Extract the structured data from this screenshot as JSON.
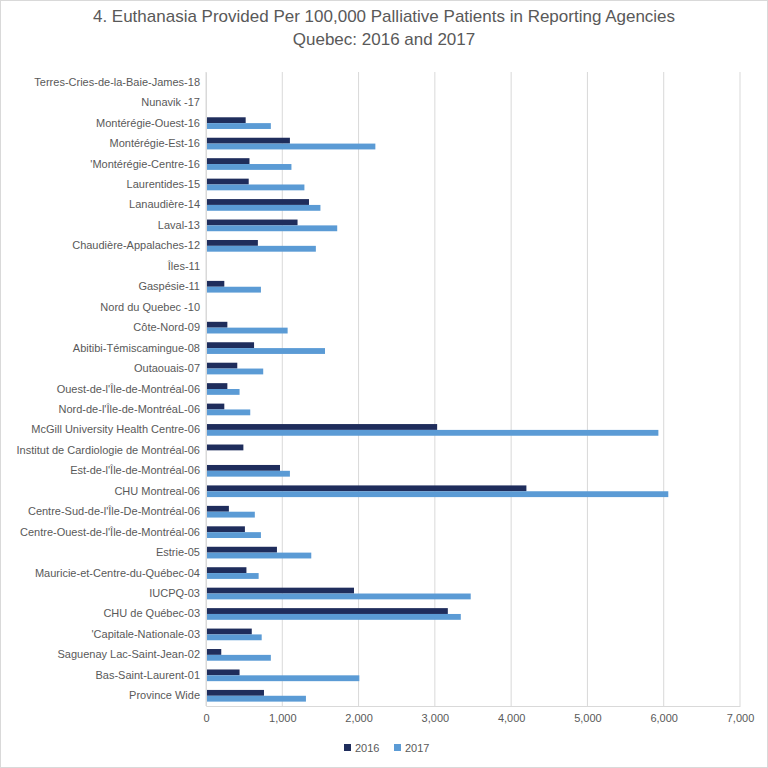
{
  "chart_data": {
    "type": "bar",
    "orientation": "horizontal",
    "title": "4. Euthanasia Provided Per 100,000 Palliative Patients in Reporting Agencies",
    "subtitle": "Quebec: 2016 and 2017",
    "categories": [
      "Terres-Cries-de-la-Baie-James-18",
      "Nunavik -17",
      "Montérégie-Ouest-16",
      "Montérégie-Est-16",
      "'Montérégie-Centre-16",
      "Laurentides-15",
      "Lanaudière-14",
      "Laval-13",
      "Chaudière-Appalaches-12",
      "Îles-11",
      "Gaspésie-11",
      "Nord du Quebec -10",
      "Côte-Nord-09",
      "Abitibi-Témiscamingue-08",
      "Outaouais-07",
      "Ouest-de-l'Île-de-Montréal-06",
      "Nord-de-l'Île-de-MontréaL-06",
      "McGill University Health Centre-06",
      "Institut de Cardiologie de Montréal-06",
      "Est-de-l'Île-de-Montréal-06",
      "CHU Montreal-06",
      "Centre-Sud-de-l'Île-De-Montréal-06",
      "Centre-Ouest-de-l'Île-de-Montréal-06",
      "Estrie-05",
      "Mauricie-et-Centre-du-Québec-04",
      "IUCPQ-03",
      "CHU de Québec-03",
      "'Capitale-Nationale-03",
      "Saguenay Lac-Saint-Jean-02",
      "Bas-Saint-Laurent-01",
      "Province Wide"
    ],
    "series": [
      {
        "name": "2016",
        "color": "#1f2d5c",
        "values": [
          0,
          0,
          520,
          1100,
          570,
          560,
          1350,
          1200,
          680,
          0,
          240,
          0,
          280,
          630,
          410,
          280,
          240,
          3030,
          490,
          970,
          4200,
          300,
          510,
          930,
          530,
          1940,
          3170,
          600,
          200,
          440,
          760
        ]
      },
      {
        "name": "2017",
        "color": "#5b9bd5",
        "values": [
          0,
          0,
          850,
          2220,
          1120,
          1290,
          1500,
          1720,
          1440,
          0,
          720,
          0,
          1070,
          1560,
          750,
          440,
          580,
          5930,
          0,
          1100,
          6060,
          640,
          720,
          1380,
          690,
          3470,
          3340,
          730,
          850,
          2010,
          1310
        ]
      }
    ],
    "xlim": [
      0,
      7000
    ],
    "xticks": [
      0,
      {
        "value": 1000,
        "label": "1,000"
      },
      {
        "value": 2000,
        "label": "2,000"
      },
      {
        "value": 3000,
        "label": "3,000"
      },
      {
        "value": 4000,
        "label": "4,000"
      },
      {
        "value": 5000,
        "label": "5,000"
      },
      {
        "value": 6000,
        "label": "6,000"
      },
      {
        "value": 7000,
        "label": "7,000"
      }
    ],
    "grid": true,
    "legend": "bottom"
  }
}
